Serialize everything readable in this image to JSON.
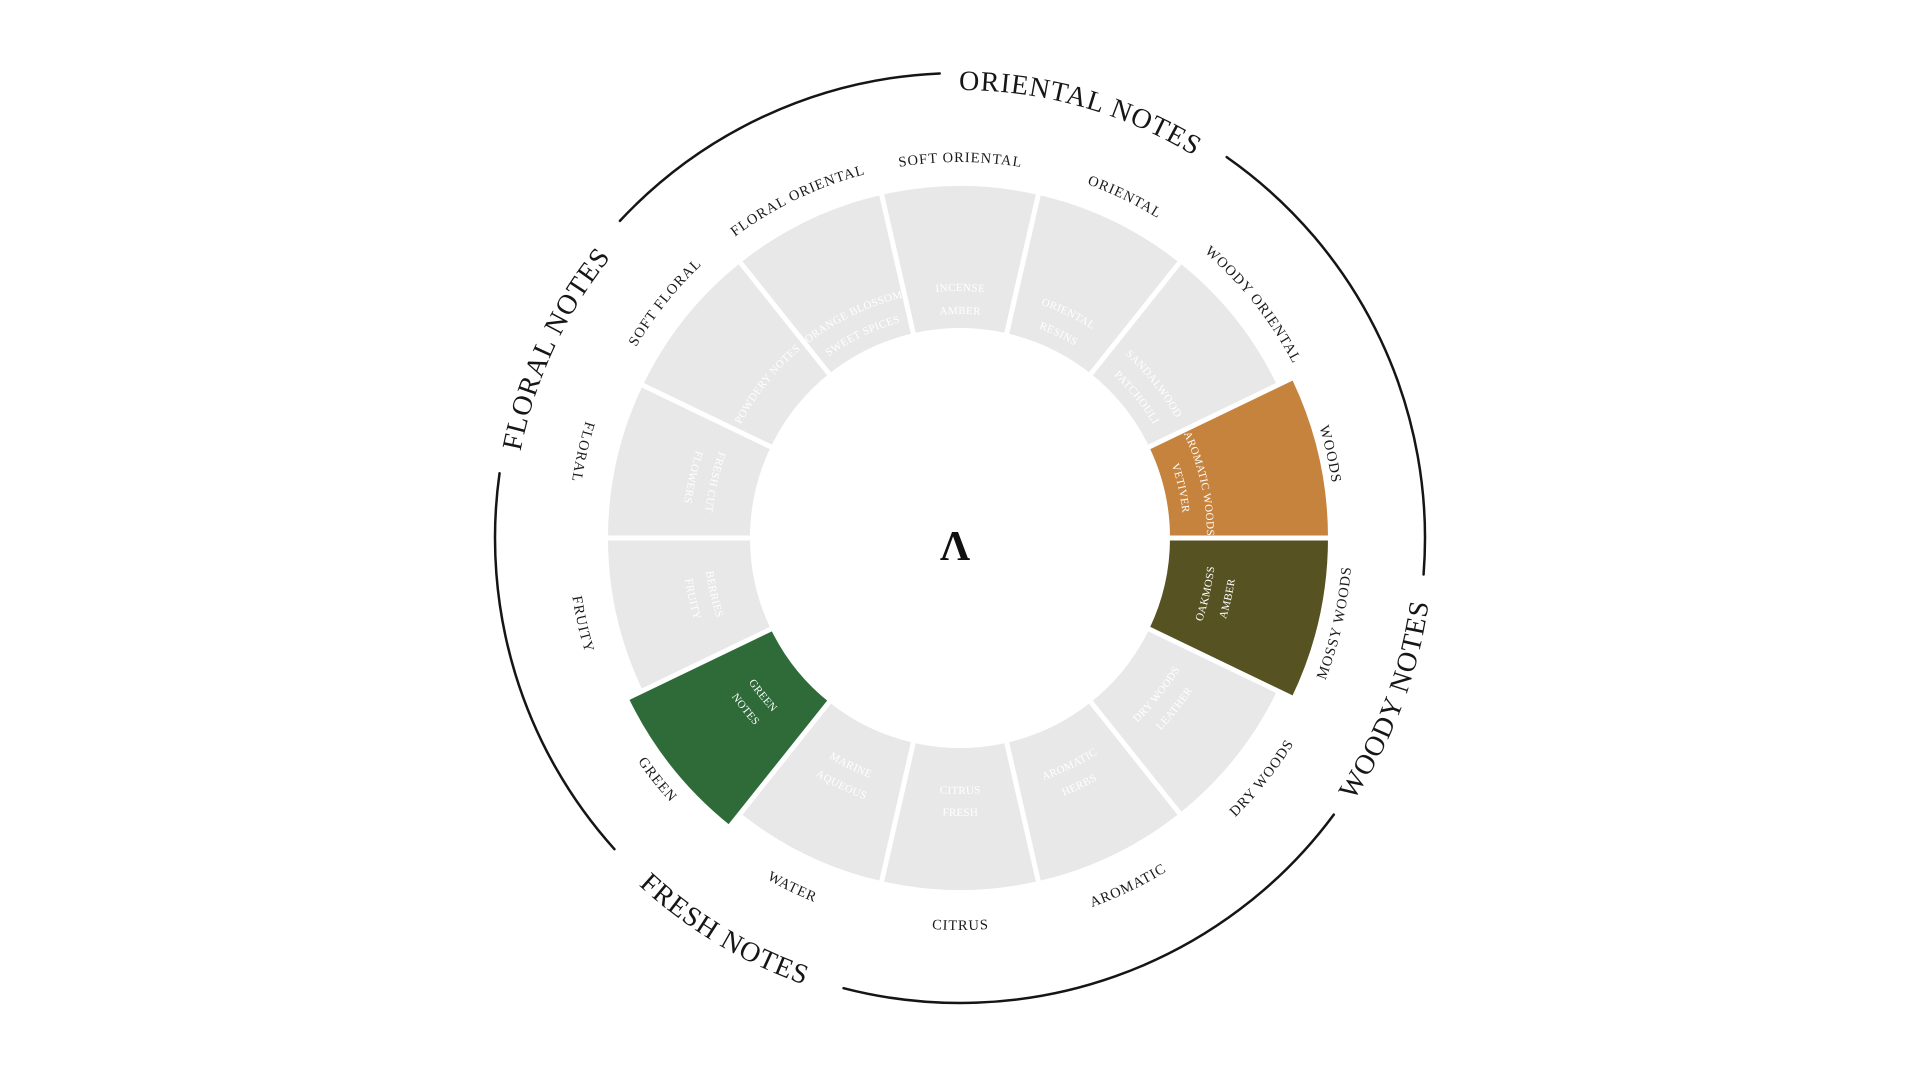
{
  "page": {
    "background": "#FFFFFF"
  },
  "wheel": {
    "center_mark": "Λ",
    "families": [
      {
        "label": "ORIENTAL NOTES"
      },
      {
        "label": "WOODY NOTES"
      },
      {
        "label": "FRESH NOTES"
      },
      {
        "label": "FLORAL NOTES"
      }
    ],
    "segments": [
      {
        "ring_label": "SOFT ORIENTAL",
        "lines": [
          "INCENSE",
          "AMBER"
        ],
        "selected": false
      },
      {
        "ring_label": "ORIENTAL",
        "lines": [
          "ORIENTAL",
          "RESINS"
        ],
        "selected": false
      },
      {
        "ring_label": "WOODY ORIENTAL",
        "lines": [
          "SANDALWOOD",
          "PATCHOULI"
        ],
        "selected": false
      },
      {
        "ring_label": "WOODS",
        "lines": [
          "AROMATIC WOODS",
          "VETIVER"
        ],
        "selected": true,
        "color": "#C6833E"
      },
      {
        "ring_label": "MOSSY WOODS",
        "lines": [
          "OAKMOSS",
          "AMBER"
        ],
        "selected": true,
        "color": "#565222"
      },
      {
        "ring_label": "DRY WOODS",
        "lines": [
          "DRY WOODS",
          "LEATHER"
        ],
        "selected": false
      },
      {
        "ring_label": "AROMATIC",
        "lines": [
          "AROMATIC",
          "HERBS"
        ],
        "selected": false
      },
      {
        "ring_label": "CITRUS",
        "lines": [
          "CITRUS",
          "FRESH"
        ],
        "selected": false
      },
      {
        "ring_label": "WATER",
        "lines": [
          "MARINE",
          "AQUEOUS"
        ],
        "selected": false
      },
      {
        "ring_label": "GREEN",
        "lines": [
          "GREEN",
          "NOTES"
        ],
        "selected": true,
        "color": "#2E6B39"
      },
      {
        "ring_label": "FRUITY",
        "lines": [
          "BERRIES",
          "FRUITY"
        ],
        "selected": false
      },
      {
        "ring_label": "FLORAL",
        "lines": [
          "FRESH CUT",
          "FLOWERS"
        ],
        "selected": false
      },
      {
        "ring_label": "SOFT FLORAL",
        "lines": [
          "POWDERY NOTES"
        ],
        "selected": false
      },
      {
        "ring_label": "FLORAL ORIENTAL",
        "lines": [
          "ORANGE BLOSSOM",
          "SWEET SPICES"
        ],
        "selected": false
      }
    ],
    "colors": {
      "background": "#FFFFFF",
      "segment": "#E9E8E8",
      "segment_text": "#FFFFFF",
      "label_text": "#1B1B1B",
      "line": "#151515",
      "highlight_orange": "#C6833E",
      "highlight_olive": "#565222",
      "highlight_green": "#2E6B39"
    }
  }
}
